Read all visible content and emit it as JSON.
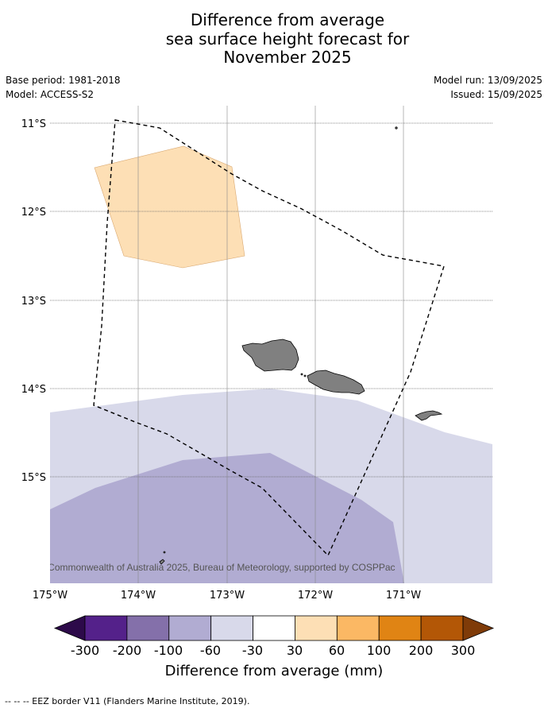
{
  "header": {
    "title_lines": [
      "Difference from average",
      "sea surface height forecast for",
      "November 2025"
    ],
    "base_period": "Base period: 1981-2018",
    "model": "Model: ACCESS-S2",
    "model_run": "Model run: 13/09/2025",
    "issued": "Issued: 15/09/2025"
  },
  "map": {
    "lon_ticks": [
      "175°W",
      "174°W",
      "173°W",
      "172°W",
      "171°W"
    ],
    "lat_ticks": [
      "11°S",
      "12°S",
      "13°S",
      "14°S",
      "15°S"
    ],
    "copyright": "© Commonwealth of Australia 2025, Bureau of Meteorology, supported by COSPPac",
    "land_color": "#808080",
    "eez_line": "dashed black"
  },
  "colorbar": {
    "title": "Difference from average (mm)",
    "labels": [
      "-300",
      "-200",
      "-100",
      "-60",
      "-30",
      "30",
      "60",
      "100",
      "200",
      "300"
    ],
    "colors": [
      "#2d0a4a",
      "#54218a",
      "#8470aa",
      "#b1acd2",
      "#d8d9ea",
      "#ffffff",
      "#fddfb5",
      "#fbb864",
      "#e08414",
      "#b35706",
      "#7f3b08"
    ]
  },
  "footer": {
    "note": "--  --  -- EEZ border V11 (Flanders Marine Institute, 2019)."
  }
}
